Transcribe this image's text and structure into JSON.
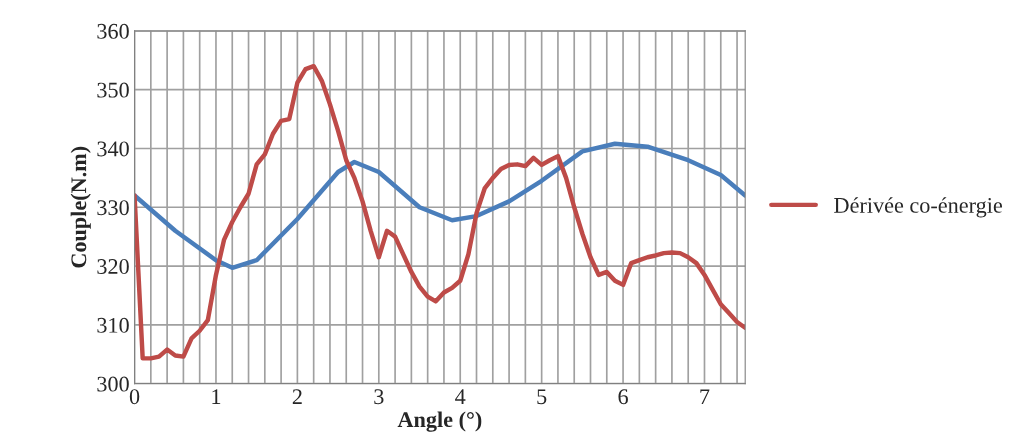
{
  "chart_data": {
    "type": "line",
    "xlabel": "Angle (°)",
    "ylabel": "Couple(N.m)",
    "xlim": [
      0,
      7.5
    ],
    "ylim": [
      300,
      360
    ],
    "xticks": [
      0,
      {
        "value": 0.2,
        "label": null
      },
      {
        "value": 0.4,
        "label": null
      },
      {
        "value": 0.6,
        "label": null
      },
      {
        "value": 0.8,
        "label": null
      },
      1,
      {
        "value": 1.2,
        "label": null
      },
      {
        "value": 1.4,
        "label": null
      },
      {
        "value": 1.6,
        "label": null
      },
      {
        "value": 1.8,
        "label": null
      },
      2,
      {
        "value": 2.2,
        "label": null
      },
      {
        "value": 2.4,
        "label": null
      },
      {
        "value": 2.6,
        "label": null
      },
      {
        "value": 2.8,
        "label": null
      },
      3,
      {
        "value": 3.2,
        "label": null
      },
      {
        "value": 3.4,
        "label": null
      },
      {
        "value": 3.6,
        "label": null
      },
      {
        "value": 3.8,
        "label": null
      },
      4,
      {
        "value": 4.2,
        "label": null
      },
      {
        "value": 4.4,
        "label": null
      },
      {
        "value": 4.6,
        "label": null
      },
      {
        "value": 4.8,
        "label": null
      },
      5,
      {
        "value": 5.2,
        "label": null
      },
      {
        "value": 5.4,
        "label": null
      },
      {
        "value": 5.6,
        "label": null
      },
      {
        "value": 5.8,
        "label": null
      },
      6,
      {
        "value": 6.2,
        "label": null
      },
      {
        "value": 6.4,
        "label": null
      },
      {
        "value": 6.6,
        "label": null
      },
      {
        "value": 6.8,
        "label": null
      },
      7,
      {
        "value": 7.2,
        "label": null
      },
      {
        "value": 7.4,
        "label": null
      }
    ],
    "yticks": [
      300,
      310,
      320,
      330,
      340,
      350,
      360
    ],
    "grid": true,
    "legend": "right",
    "marker": "none",
    "line_style": "solid",
    "series": [
      {
        "color": "#4a7ebb",
        "x": [
          0,
          0.5,
          1,
          1.2,
          1.5,
          2,
          2.5,
          2.7,
          3,
          3.5,
          3.9,
          4.2,
          4.6,
          5,
          5.5,
          5.9,
          6.3,
          6.8,
          7.2,
          7.5
        ],
        "values": [
          332,
          326,
          321,
          319.7,
          321,
          328,
          336,
          337.7,
          336,
          330,
          327.8,
          328.5,
          331,
          334.5,
          339.5,
          340.8,
          340.3,
          338,
          335.5,
          332
        ]
      },
      {
        "name": "Dérivée co-énergie",
        "color": "#be4b48",
        "x": [
          0,
          0.1,
          0.2,
          0.3,
          0.4,
          0.5,
          0.6,
          0.7,
          0.8,
          0.9,
          1.0,
          1.1,
          1.2,
          1.3,
          1.4,
          1.5,
          1.6,
          1.7,
          1.8,
          1.9,
          2.0,
          2.1,
          2.2,
          2.3,
          2.4,
          2.5,
          2.6,
          2.7,
          2.8,
          2.9,
          3.0,
          3.1,
          3.2,
          3.3,
          3.4,
          3.5,
          3.6,
          3.7,
          3.8,
          3.9,
          4.0,
          4.1,
          4.2,
          4.3,
          4.4,
          4.5,
          4.6,
          4.7,
          4.8,
          4.9,
          5.0,
          5.1,
          5.2,
          5.3,
          5.4,
          5.5,
          5.6,
          5.7,
          5.8,
          5.9,
          6.0,
          6.1,
          6.2,
          6.3,
          6.4,
          6.5,
          6.6,
          6.7,
          6.8,
          6.9,
          7.0,
          7.1,
          7.2,
          7.3,
          7.4,
          7.5
        ],
        "values": [
          332,
          304.3,
          304.3,
          304.6,
          305.8,
          304.8,
          304.6,
          307.7,
          309,
          310.8,
          318.5,
          324.5,
          327.5,
          330,
          332.3,
          337.3,
          339,
          342.5,
          344.7,
          345,
          351.2,
          353.5,
          354,
          351.5,
          347.5,
          343,
          338,
          335,
          331,
          326,
          321.5,
          326,
          325,
          322,
          319,
          316.5,
          314.8,
          314,
          315.5,
          316.3,
          317.5,
          322,
          329,
          333.2,
          335,
          336.5,
          337.2,
          337.3,
          337,
          338.4,
          337.2,
          338,
          338.7,
          335,
          330,
          325.5,
          321.5,
          318.5,
          319,
          317.5,
          316.8,
          320.5,
          321,
          321.5,
          321.8,
          322.2,
          322.3,
          322.2,
          321.5,
          320.5,
          318.5,
          316,
          313.5,
          312,
          310.5,
          309.5
        ]
      }
    ]
  }
}
